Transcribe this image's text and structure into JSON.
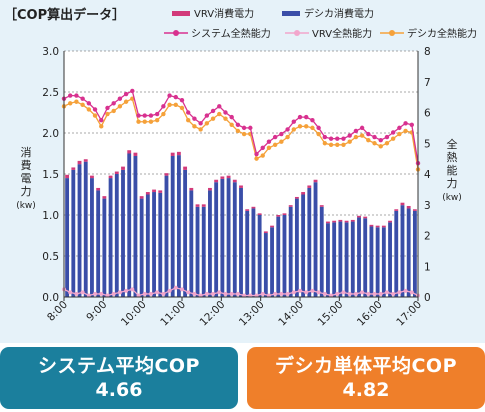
{
  "chart_data": {
    "type": "bar+line",
    "title": "［COP算出データ］",
    "x_tick_labels": [
      "8:00",
      "9:00",
      "10:00",
      "11:00",
      "12:00",
      "13:00",
      "14:00",
      "15:00",
      "16:00",
      "17:00"
    ],
    "left_axis": {
      "label": [
        "消",
        "費",
        "電",
        "力",
        "(kw)"
      ],
      "min": 0,
      "max": 3.0,
      "ticks": [
        "0.0",
        "0.5",
        "1.0",
        "1.5",
        "2.0",
        "2.5",
        "3.0"
      ]
    },
    "right_axis": {
      "label": [
        "全",
        "熱",
        "能",
        "力",
        "(kw)"
      ],
      "min": 0,
      "max": 8,
      "ticks": [
        "0",
        "1",
        "2",
        "3",
        "4",
        "5",
        "6",
        "7",
        "8"
      ]
    },
    "legend": {
      "vrv_power": "VRV消費電力",
      "desica_power": "デシカ消費電力",
      "system_heat": "システム全熱能力",
      "vrv_heat": "VRV全熱能力",
      "desica_heat": "デシカ全熱能力"
    },
    "series": {
      "desica_power": [
        1.45,
        1.55,
        1.62,
        1.65,
        1.45,
        1.3,
        1.2,
        1.45,
        1.5,
        1.55,
        1.75,
        1.72,
        1.2,
        1.25,
        1.28,
        1.27,
        1.48,
        1.72,
        1.73,
        1.55,
        1.3,
        1.1,
        1.1,
        1.3,
        1.4,
        1.44,
        1.45,
        1.4,
        1.33,
        1.05,
        1.08,
        1.0,
        0.78,
        0.85,
        0.98,
        1.0,
        1.1,
        1.2,
        1.25,
        1.33,
        1.4,
        1.1,
        0.9,
        0.91,
        0.92,
        0.91,
        0.92,
        0.97,
        0.96,
        0.86,
        0.85,
        0.85,
        0.91,
        1.05,
        1.12,
        1.08,
        1.05
      ],
      "vrv_power": [
        0.04,
        0.03,
        0.04,
        0.03,
        0.03,
        0.03,
        0.03,
        0.03,
        0.03,
        0.04,
        0.04,
        0.04,
        0.03,
        0.03,
        0.03,
        0.03,
        0.03,
        0.04,
        0.04,
        0.04,
        0.03,
        0.03,
        0.03,
        0.03,
        0.03,
        0.03,
        0.03,
        0.03,
        0.03,
        0.02,
        0.02,
        0.02,
        0.02,
        0.02,
        0.02,
        0.02,
        0.02,
        0.02,
        0.03,
        0.03,
        0.03,
        0.02,
        0.02,
        0.02,
        0.02,
        0.02,
        0.02,
        0.02,
        0.02,
        0.02,
        0.02,
        0.02,
        0.02,
        0.02,
        0.03,
        0.03,
        0.02
      ],
      "system_heat": [
        6.45,
        6.55,
        6.55,
        6.45,
        6.3,
        6.1,
        5.75,
        6.15,
        6.3,
        6.45,
        6.6,
        6.7,
        5.9,
        5.9,
        5.9,
        5.95,
        6.2,
        6.55,
        6.5,
        6.4,
        6.0,
        5.8,
        5.65,
        5.9,
        6.05,
        6.2,
        6.0,
        5.85,
        5.6,
        5.5,
        5.5,
        4.65,
        4.85,
        5.05,
        5.2,
        5.3,
        5.45,
        5.7,
        5.85,
        5.85,
        5.75,
        5.5,
        5.2,
        5.15,
        5.15,
        5.15,
        5.25,
        5.4,
        5.5,
        5.3,
        5.2,
        5.1,
        5.2,
        5.35,
        5.5,
        5.65,
        5.6,
        4.35
      ],
      "desica_heat": [
        6.2,
        6.3,
        6.35,
        6.25,
        6.1,
        5.9,
        5.55,
        5.95,
        6.05,
        6.2,
        6.35,
        6.45,
        5.7,
        5.7,
        5.7,
        5.75,
        5.95,
        6.25,
        6.25,
        6.15,
        5.75,
        5.55,
        5.45,
        5.65,
        5.8,
        5.95,
        5.8,
        5.6,
        5.4,
        5.3,
        5.3,
        4.5,
        4.6,
        4.85,
        4.95,
        5.05,
        5.2,
        5.45,
        5.55,
        5.55,
        5.5,
        5.3,
        5.0,
        4.95,
        4.95,
        4.95,
        5.05,
        5.2,
        5.25,
        5.1,
        5.0,
        4.9,
        5.0,
        5.15,
        5.3,
        5.4,
        5.35,
        4.15
      ],
      "vrv_heat": [
        0.25,
        0.15,
        0.1,
        0.15,
        0.05,
        0.1,
        0.1,
        0.05,
        0.1,
        0.15,
        0.2,
        0.25,
        0.05,
        0.1,
        0.1,
        0.15,
        0.1,
        0.2,
        0.3,
        0.25,
        0.15,
        0.1,
        0.05,
        0.1,
        0.1,
        0.15,
        0.1,
        0.1,
        0.1,
        0.05,
        0.05,
        0.05,
        0.1,
        0.05,
        0.1,
        0.1,
        0.1,
        0.15,
        0.2,
        0.15,
        0.2,
        0.15,
        0.1,
        0.05,
        0.1,
        0.15,
        0.1,
        0.1,
        0.15,
        0.1,
        0.1,
        0.1,
        0.15,
        0.1,
        0.15,
        0.2,
        0.15,
        0.05
      ]
    },
    "colors": {
      "vrv_power": "#d23a7a",
      "desica_power": "#3a4ea8",
      "system_heat": "#d8318f",
      "vrv_heat": "#f2a6cc",
      "desica_heat": "#f5a13a"
    },
    "grid": true,
    "legend_position": "top"
  },
  "summary": {
    "system_label": "システム平均COP",
    "system_value": "4.66",
    "desica_label": "デシカ単体平均COP",
    "desica_value": "4.82"
  }
}
